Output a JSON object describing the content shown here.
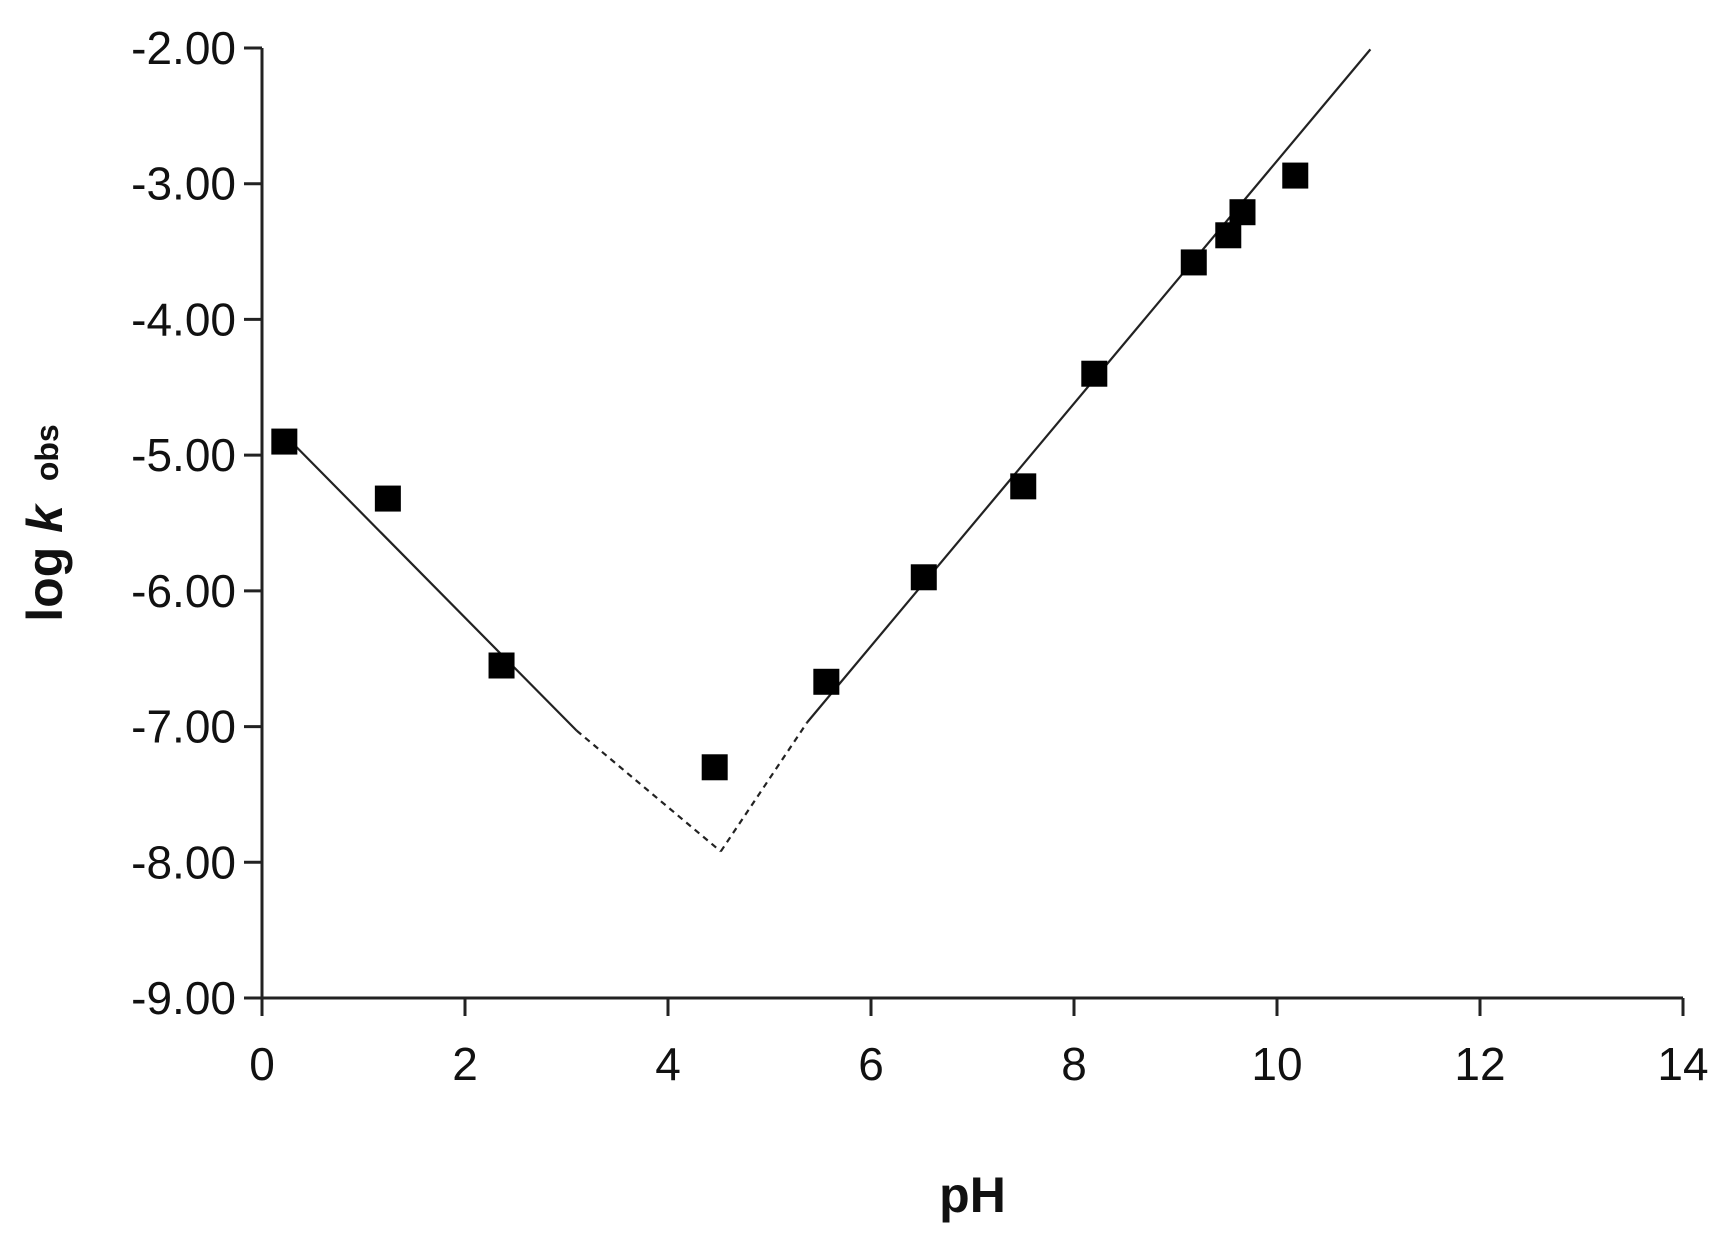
{
  "chart_data": {
    "type": "scatter",
    "title": "",
    "xlabel": "pH",
    "ylabel": {
      "main": "log ",
      "k": "k",
      "sub": "obs"
    },
    "xlim": [
      0,
      14
    ],
    "ylim": [
      -9,
      -2
    ],
    "x_ticks": [
      "0",
      "2",
      "4",
      "6",
      "8",
      "10",
      "12",
      "14"
    ],
    "y_ticks": [
      "-2.00",
      "-3.00",
      "-4.00",
      "-5.00",
      "-6.00",
      "-7.00",
      "-8.00",
      "-9.00"
    ],
    "grid": false,
    "legend": "none",
    "marker_color": "#000000",
    "line_color": "#222222",
    "series": [
      {
        "kind": "points",
        "marker": "square",
        "x": [
          0.22,
          1.24,
          2.36,
          4.46,
          5.56,
          6.52,
          7.5,
          8.2,
          9.18,
          9.52,
          9.66,
          10.18
        ],
        "y": [
          -4.9,
          -5.32,
          -6.55,
          -7.3,
          -6.67,
          -5.9,
          -5.23,
          -4.4,
          -3.58,
          -3.38,
          -3.21,
          -2.94
        ]
      },
      {
        "kind": "line",
        "style": "solid",
        "x": [
          0.22,
          3.1
        ],
        "y": [
          -4.85,
          -7.03
        ]
      },
      {
        "kind": "line",
        "style": "dashed",
        "x": [
          3.1,
          4.52
        ],
        "y": [
          -7.03,
          -7.92
        ]
      },
      {
        "kind": "line",
        "style": "dashed",
        "x": [
          4.52,
          5.37
        ],
        "y": [
          -7.92,
          -6.97
        ]
      },
      {
        "kind": "line",
        "style": "solid",
        "x": [
          5.37,
          10.92
        ],
        "y": [
          -6.97,
          -2.01
        ]
      }
    ]
  }
}
